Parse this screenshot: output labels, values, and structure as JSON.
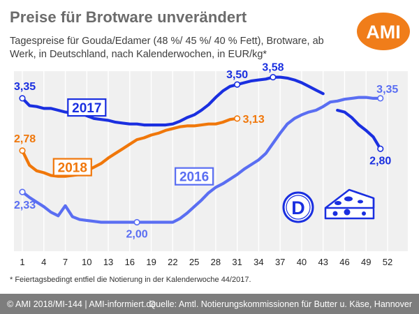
{
  "title": "Preise für Brotware unverändert",
  "subtitle": "Tagespreise für Gouda/Edamer (48 %/ 45 %/ 40 % Fett), Brotware, ab Werk, in Deutschland, nach Kalenderwochen, in EUR/kg*",
  "logo": {
    "text": "AMI",
    "color": "#f07d1a"
  },
  "footnote": "* Feiertagsbedingt entfiel die Notierung in der Kalenderwoche 44/2017.",
  "footer": {
    "left": "© AMI 2018/MI-144 | AMI-informiert.de",
    "right": "Quelle: Amtl. Notierungskommissionen für Butter u. Käse, Hannover"
  },
  "icons": [
    "d-country-badge-icon",
    "cheese-wedge-icon"
  ],
  "chart_data": {
    "type": "line",
    "xlim": [
      1,
      52
    ],
    "ylim": [
      1.7,
      3.6
    ],
    "x_ticks": [
      "1",
      "4",
      "7",
      "10",
      "13",
      "16",
      "19",
      "22",
      "25",
      "28",
      "31",
      "34",
      "37",
      "40",
      "43",
      "46",
      "49",
      "52"
    ],
    "grid": true,
    "series": [
      {
        "name": "2017",
        "color": "#1a2fe0",
        "x": [
          1,
          2,
          3,
          4,
          5,
          6,
          7,
          8,
          9,
          10,
          11,
          12,
          13,
          14,
          15,
          16,
          17,
          18,
          19,
          20,
          21,
          22,
          23,
          24,
          25,
          26,
          27,
          28,
          29,
          30,
          31,
          32,
          33,
          34,
          35,
          36,
          37,
          38,
          39,
          40,
          41,
          42,
          43
        ],
        "y": [
          3.35,
          3.27,
          3.26,
          3.24,
          3.24,
          3.22,
          3.2,
          3.19,
          3.19,
          3.16,
          3.13,
          3.12,
          3.11,
          3.09,
          3.08,
          3.07,
          3.07,
          3.06,
          3.06,
          3.06,
          3.06,
          3.07,
          3.1,
          3.14,
          3.17,
          3.22,
          3.28,
          3.36,
          3.43,
          3.48,
          3.5,
          3.52,
          3.54,
          3.55,
          3.56,
          3.58,
          3.58,
          3.57,
          3.55,
          3.52,
          3.48,
          3.44,
          3.4
        ]
      },
      {
        "name": "2017",
        "color": "#1a2fe0",
        "x": [
          45,
          46,
          47,
          48,
          49,
          50,
          51
        ],
        "y": [
          3.22,
          3.2,
          3.14,
          3.06,
          3.0,
          2.93,
          2.8
        ]
      },
      {
        "name": "2018",
        "color": "#f0770a",
        "x": [
          1,
          2,
          3,
          4,
          5,
          6,
          7,
          8,
          9,
          10,
          11,
          12,
          13,
          14,
          15,
          16,
          17,
          18,
          19,
          20,
          21,
          22,
          23,
          24,
          25,
          26,
          27,
          28,
          29,
          30,
          31
        ],
        "y": [
          2.78,
          2.62,
          2.56,
          2.54,
          2.51,
          2.5,
          2.5,
          2.51,
          2.52,
          2.56,
          2.6,
          2.64,
          2.7,
          2.75,
          2.8,
          2.85,
          2.9,
          2.92,
          2.95,
          2.97,
          3.0,
          3.02,
          3.04,
          3.05,
          3.05,
          3.06,
          3.07,
          3.07,
          3.09,
          3.12,
          3.13
        ]
      },
      {
        "name": "2016",
        "color": "#5a6ef2",
        "x": [
          1,
          2,
          3,
          4,
          5,
          6,
          7,
          8,
          9,
          10,
          11,
          12,
          13,
          14,
          15,
          16,
          17,
          18,
          19,
          20,
          21,
          22,
          23,
          24,
          25,
          26,
          27,
          28,
          29,
          30,
          31,
          32,
          33,
          34,
          35,
          36,
          37,
          38,
          39,
          40,
          41,
          42,
          43,
          44,
          45,
          46,
          47,
          48,
          49,
          50,
          51
        ],
        "y": [
          2.33,
          2.27,
          2.22,
          2.17,
          2.11,
          2.07,
          2.18,
          2.06,
          2.03,
          2.02,
          2.01,
          2.0,
          2.0,
          2.0,
          2.0,
          2.0,
          2.0,
          2.0,
          2.0,
          2.0,
          2.0,
          2.0,
          2.04,
          2.1,
          2.17,
          2.24,
          2.32,
          2.38,
          2.42,
          2.47,
          2.52,
          2.58,
          2.63,
          2.68,
          2.75,
          2.86,
          2.97,
          3.07,
          3.13,
          3.17,
          3.2,
          3.22,
          3.26,
          3.31,
          3.32,
          3.34,
          3.35,
          3.36,
          3.36,
          3.35,
          3.35
        ]
      }
    ],
    "series_labels": [
      {
        "text": "2017",
        "color": "#1a2fe0",
        "x": 10,
        "y": 3.25
      },
      {
        "text": "2018",
        "color": "#f0770a",
        "x": 8,
        "y": 2.6
      },
      {
        "text": "2016",
        "color": "#5a6ef2",
        "x": 25,
        "y": 2.5
      }
    ],
    "data_labels": [
      {
        "text": "3,35",
        "color": "#1a2fe0",
        "x": 1,
        "y": 3.35
      },
      {
        "text": "3,50",
        "color": "#1a2fe0",
        "x": 31,
        "y": 3.5
      },
      {
        "text": "3,58",
        "color": "#1a2fe0",
        "x": 36,
        "y": 3.58
      },
      {
        "text": "2,80",
        "color": "#1a2fe0",
        "x": 51,
        "y": 2.8
      },
      {
        "text": "2,78",
        "color": "#f0770a",
        "x": 1,
        "y": 2.78
      },
      {
        "text": "3,13",
        "color": "#f0770a",
        "x": 31,
        "y": 3.13
      },
      {
        "text": "2,33",
        "color": "#5a6ef2",
        "x": 1,
        "y": 2.33
      },
      {
        "text": "2,00",
        "color": "#5a6ef2",
        "x": 17,
        "y": 2.0
      },
      {
        "text": "3,35",
        "color": "#5a6ef2",
        "x": 51,
        "y": 3.35
      }
    ]
  }
}
